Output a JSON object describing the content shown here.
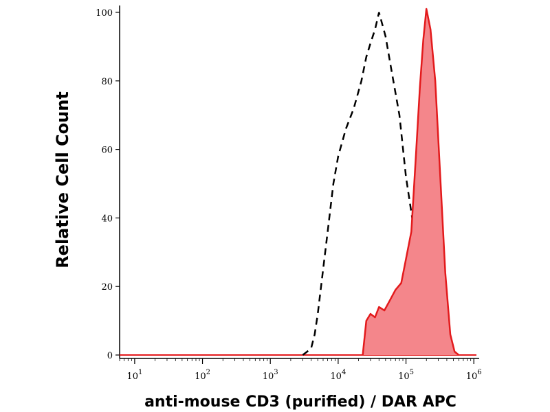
{
  "chart_data": {
    "type": "area",
    "title": "",
    "xlabel": "anti-mouse CD3 (purified) / DAR APC",
    "ylabel": "Relative Cell Count",
    "x_scale": "log",
    "xlim": [
      6,
      1200000
    ],
    "ylim": [
      -1,
      102
    ],
    "x_ticks": [
      {
        "value": 10,
        "base": "10",
        "exp": "1"
      },
      {
        "value": 100,
        "base": "10",
        "exp": "2"
      },
      {
        "value": 1000,
        "base": "10",
        "exp": "3"
      },
      {
        "value": 10000,
        "base": "10",
        "exp": "4"
      },
      {
        "value": 100000,
        "base": "10",
        "exp": "5"
      },
      {
        "value": 1000000,
        "base": "10",
        "exp": "6"
      }
    ],
    "y_ticks": [
      0,
      20,
      40,
      60,
      80,
      100
    ],
    "grid": false,
    "series": [
      {
        "style": "dashed-line",
        "color": "#000000",
        "x": [
          3000,
          3500,
          4000,
          4500,
          5000,
          6000,
          7000,
          8500,
          10000,
          13000,
          17000,
          22000,
          26000,
          30000,
          35000,
          40000,
          50000,
          60000,
          80000,
          100000,
          130000,
          160000,
          200000
        ],
        "y": [
          0,
          1,
          2,
          6,
          12,
          25,
          36,
          50,
          58,
          66,
          72,
          80,
          87,
          91,
          95,
          100,
          93,
          84,
          70,
          52,
          37,
          23,
          14
        ]
      },
      {
        "style": "filled-area",
        "color": "#e31a1c",
        "fill": "#f4868b",
        "x": [
          23000,
          26000,
          30000,
          35000,
          40000,
          48000,
          58000,
          70000,
          85000,
          100000,
          120000,
          140000,
          160000,
          180000,
          200000,
          230000,
          270000,
          320000,
          380000,
          450000,
          520000,
          600000
        ],
        "y": [
          0,
          10,
          12,
          11,
          14,
          13,
          16,
          19,
          21,
          28,
          36,
          58,
          78,
          92,
          101,
          95,
          80,
          52,
          24,
          6,
          1,
          0
        ]
      }
    ]
  }
}
